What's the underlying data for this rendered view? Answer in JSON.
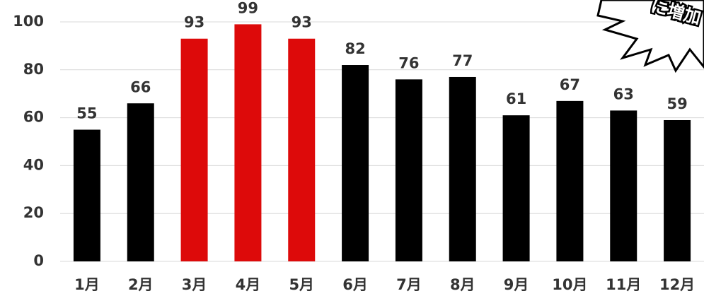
{
  "chart_data": {
    "type": "bar",
    "categories": [
      "1月",
      "2月",
      "3月",
      "4月",
      "5月",
      "6月",
      "7月",
      "8月",
      "9月",
      "10月",
      "11月",
      "12月"
    ],
    "values": [
      55,
      66,
      93,
      99,
      93,
      82,
      76,
      77,
      61,
      67,
      63,
      59
    ],
    "colors": [
      "#000000",
      "#000000",
      "#dd0a0a",
      "#dd0a0a",
      "#dd0a0a",
      "#000000",
      "#000000",
      "#000000",
      "#000000",
      "#000000",
      "#000000",
      "#000000"
    ],
    "ylim": [
      0,
      100
    ],
    "yticks": [
      0,
      20,
      40,
      60,
      80,
      100
    ],
    "grid": true,
    "annotation": "に増加"
  }
}
